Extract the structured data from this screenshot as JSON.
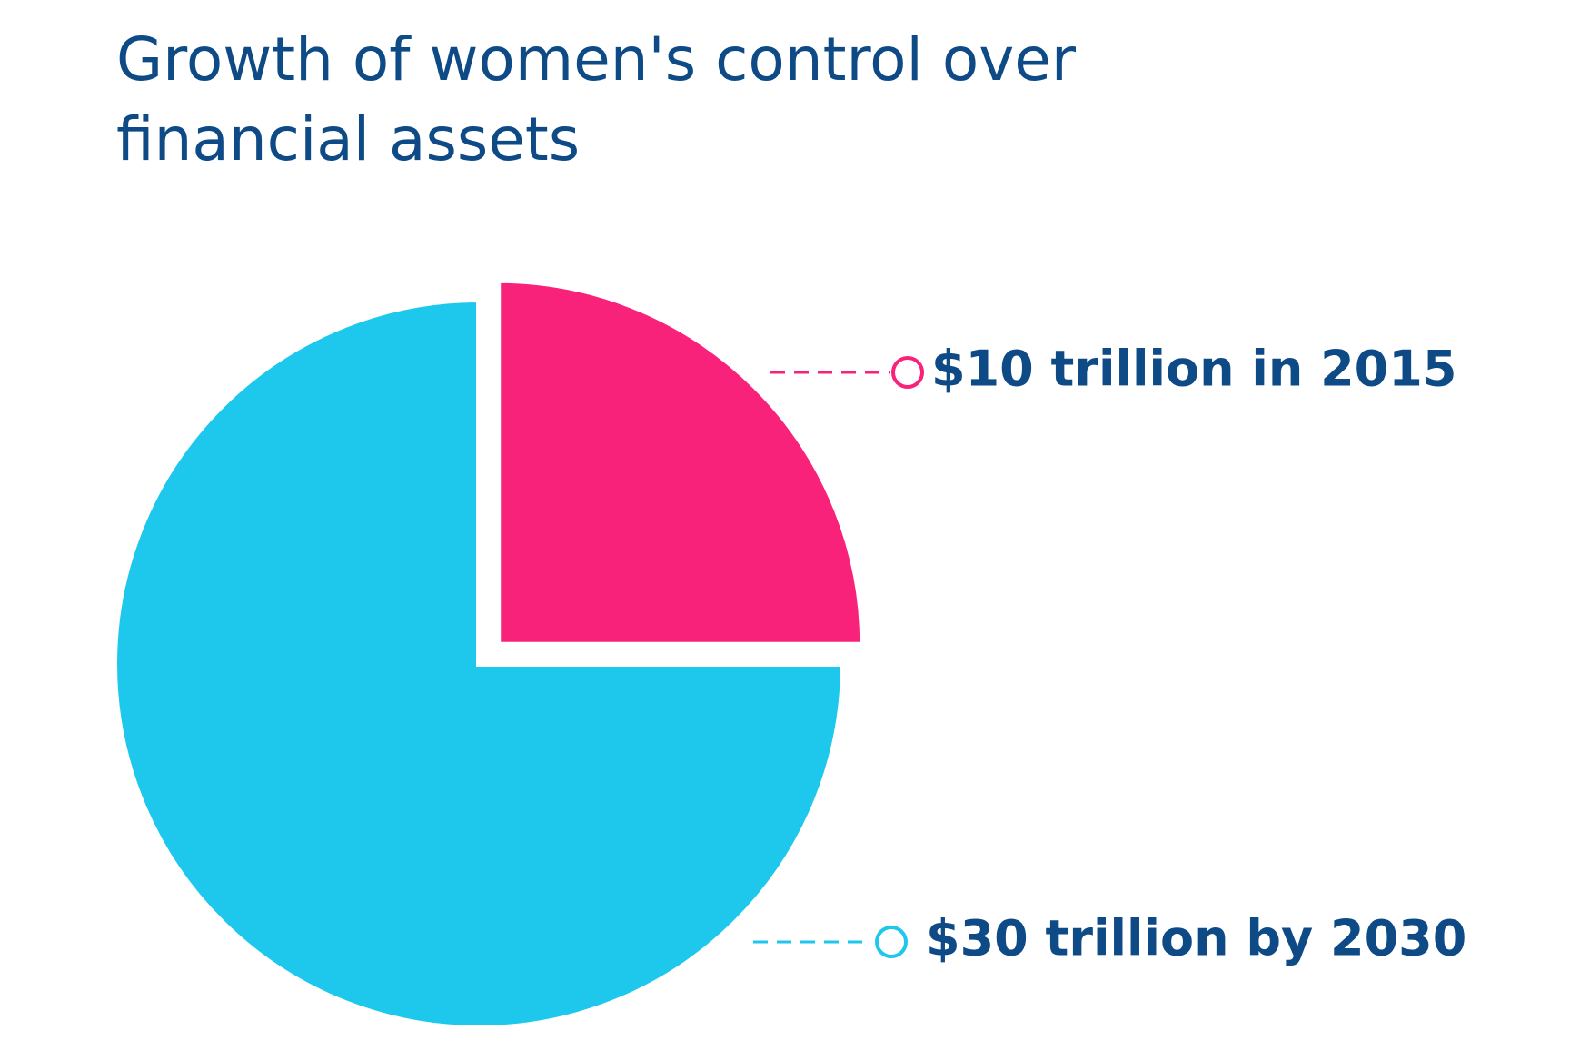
{
  "chart_data": {
    "type": "pie",
    "title": "Growth of women's control over financial assets",
    "categories": [
      "$10 trillion in 2015",
      "$30 trillion by 2030"
    ],
    "values": [
      10,
      30
    ],
    "colors": [
      "#f9227b",
      "#1dc8ec"
    ]
  }
}
